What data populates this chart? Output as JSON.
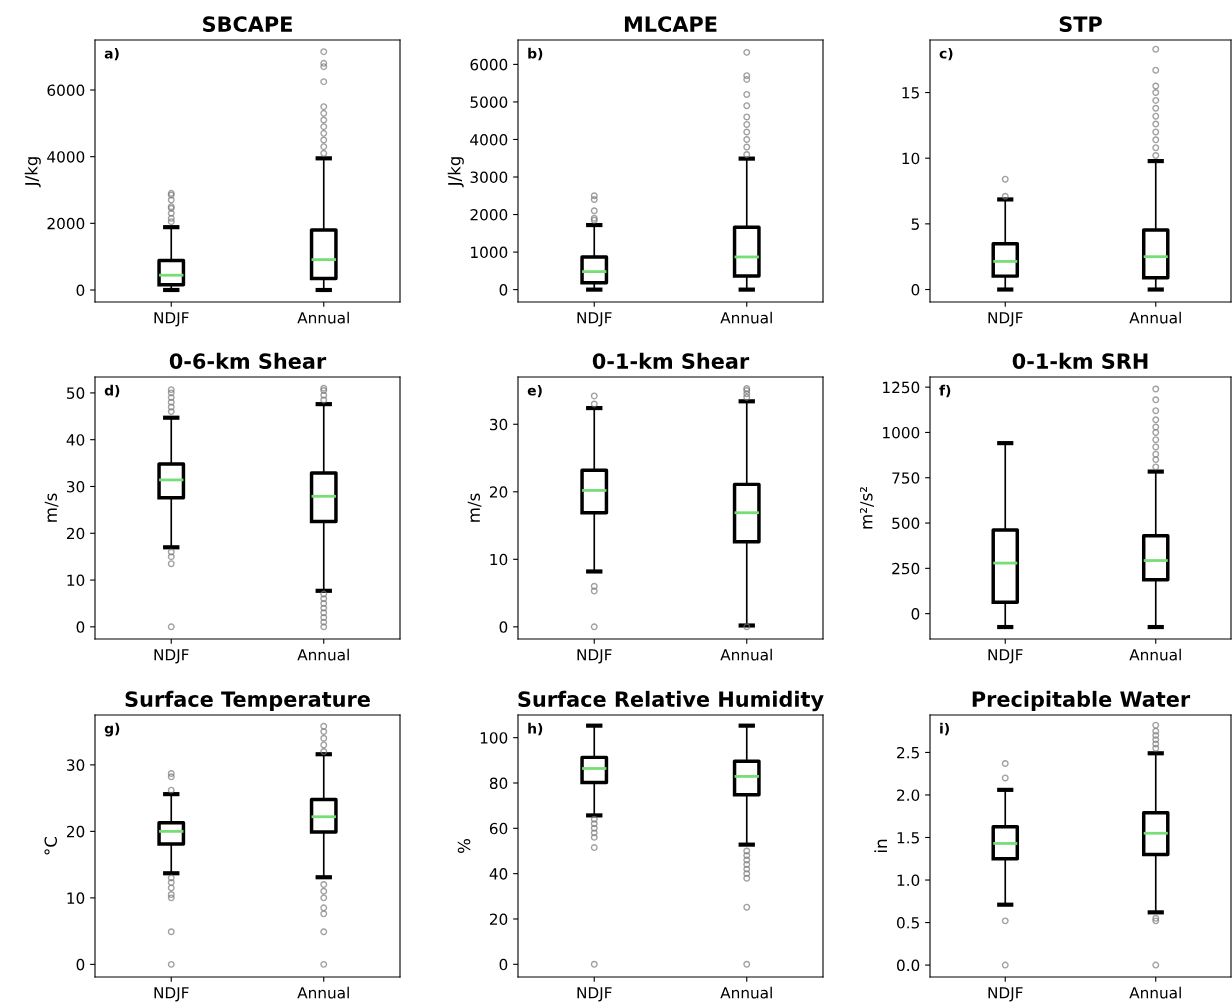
{
  "chart_data": [
    {
      "type": "box",
      "title": "SBCAPE",
      "ylabel": "J/kg",
      "annotations": [
        "a)"
      ],
      "categories": [
        "NDJF",
        "Annual"
      ],
      "color": "#000000",
      "ylim": [
        -360,
        7500
      ],
      "yticks": [
        0,
        2000,
        4000,
        6000
      ],
      "boxes": [
        {
          "low": 0,
          "q1": 156,
          "median": 444,
          "q3": 888,
          "high": 1885,
          "outliers": [
            2050,
            2150,
            2300,
            2450,
            2500,
            2700,
            2850,
            2900
          ]
        },
        {
          "low": 0,
          "q1": 348,
          "median": 912,
          "q3": 1800,
          "high": 3950,
          "outliers": [
            4100,
            4300,
            4500,
            4700,
            4900,
            5100,
            5300,
            5500,
            6250,
            6700,
            6800,
            7150
          ]
        }
      ]
    },
    {
      "type": "box",
      "title": "MLCAPE",
      "ylabel": "J/kg",
      "annotations": [
        "b)"
      ],
      "categories": [
        "NDJF",
        "Annual"
      ],
      "color": "#000000",
      "ylim": [
        -330,
        6650
      ],
      "yticks": [
        0,
        1000,
        2000,
        3000,
        4000,
        5000,
        6000
      ],
      "boxes": [
        {
          "low": 0,
          "q1": 180,
          "median": 480,
          "q3": 870,
          "high": 1720,
          "outliers": [
            1850,
            1900,
            2100,
            2400,
            2500
          ]
        },
        {
          "low": 0,
          "q1": 360,
          "median": 870,
          "q3": 1660,
          "high": 3490,
          "outliers": [
            3600,
            3800,
            4000,
            4200,
            4400,
            4600,
            4900,
            5200,
            5600,
            5700,
            6320
          ]
        }
      ]
    },
    {
      "type": "box",
      "title": "STP",
      "annotations": [
        "c)"
      ],
      "categories": [
        "NDJF",
        "Annual"
      ],
      "color": "#000000",
      "ylim": [
        -0.95,
        19.0
      ],
      "yticks": [
        0,
        5,
        10,
        15
      ],
      "boxes": [
        {
          "low": 0,
          "q1": 1.02,
          "median": 2.14,
          "q3": 3.48,
          "high": 6.86,
          "outliers": [
            7.1,
            8.4
          ]
        },
        {
          "low": 0,
          "q1": 0.9,
          "median": 2.5,
          "q3": 4.53,
          "high": 9.78,
          "outliers": [
            10.2,
            10.8,
            11.4,
            12.0,
            12.6,
            13.2,
            13.8,
            14.4,
            15.0,
            15.5,
            16.7,
            18.3
          ]
        }
      ]
    },
    {
      "type": "box",
      "title": "0-6-km Shear",
      "ylabel": "m/s",
      "annotations": [
        "d)"
      ],
      "categories": [
        "NDJF",
        "Annual"
      ],
      "color": "#000000",
      "ylim": [
        -2.6,
        53.4
      ],
      "yticks": [
        0,
        10,
        20,
        30,
        40,
        50
      ],
      "boxes": [
        {
          "low": 17.0,
          "q1": 27.6,
          "median": 31.4,
          "q3": 34.8,
          "high": 44.7,
          "outliers": [
            0,
            13.5,
            15,
            16,
            46,
            47,
            48,
            49,
            50,
            50.7
          ]
        },
        {
          "low": 7.7,
          "q1": 22.5,
          "median": 27.9,
          "q3": 32.9,
          "high": 47.6,
          "outliers": [
            0,
            1,
            2,
            3,
            4,
            5,
            6,
            7,
            48.5,
            49.5,
            50.5,
            51
          ]
        }
      ]
    },
    {
      "type": "box",
      "title": "0-1-km Shear",
      "ylabel": "m/s",
      "annotations": [
        "e)"
      ],
      "categories": [
        "NDJF",
        "Annual"
      ],
      "color": "#000000",
      "ylim": [
        -1.8,
        37
      ],
      "yticks": [
        0,
        10,
        20,
        30
      ],
      "boxes": [
        {
          "low": 8.2,
          "q1": 16.9,
          "median": 20.2,
          "q3": 23.2,
          "high": 32.4,
          "outliers": [
            0,
            5.3,
            6.0,
            33.0,
            34.2
          ]
        },
        {
          "low": 0.2,
          "q1": 12.6,
          "median": 16.9,
          "q3": 21.1,
          "high": 33.4,
          "outliers": [
            0,
            34,
            34.5,
            35,
            35.3
          ]
        }
      ]
    },
    {
      "type": "box",
      "title": "0-1-km SRH",
      "ylabel": "m²/s²",
      "annotations": [
        "f)"
      ],
      "categories": [
        "NDJF",
        "Annual"
      ],
      "color": "#000000",
      "ylim": [
        -140,
        1306
      ],
      "yticks": [
        0,
        250,
        500,
        750,
        1000,
        1250
      ],
      "boxes": [
        {
          "low": -74,
          "q1": 63,
          "median": 279,
          "q3": 462,
          "high": 941
        },
        {
          "low": -74,
          "q1": 187,
          "median": 293,
          "q3": 430,
          "high": 784,
          "outliers": [
            810,
            850,
            880,
            920,
            960,
            1000,
            1030,
            1070,
            1120,
            1180,
            1240
          ]
        }
      ]
    },
    {
      "type": "box",
      "title": "Surface Temperature",
      "ylabel": "°C",
      "annotations": [
        "g)"
      ],
      "categories": [
        "NDJF",
        "Annual"
      ],
      "color": "#000000",
      "ylim": [
        -1.9,
        37.5
      ],
      "yticks": [
        0,
        10,
        20,
        30
      ],
      "boxes": [
        {
          "low": 13.7,
          "q1": 18.1,
          "median": 20.0,
          "q3": 21.3,
          "high": 25.6,
          "outliers": [
            0,
            4.9,
            10,
            10.5,
            11.5,
            12.3,
            13,
            26.2,
            28.2,
            28.7
          ]
        },
        {
          "low": 13.1,
          "q1": 19.9,
          "median": 22.2,
          "q3": 24.8,
          "high": 31.6,
          "outliers": [
            0,
            4.9,
            7.6,
            8.5,
            10,
            11,
            12,
            32,
            33,
            34,
            35,
            35.8
          ]
        }
      ]
    },
    {
      "type": "box",
      "title": "Surface Relative Humidity",
      "ylabel": "%",
      "annotations": [
        "h)"
      ],
      "categories": [
        "NDJF",
        "Annual"
      ],
      "color": "#000000",
      "ylim": [
        -5.6,
        110
      ],
      "yticks": [
        0,
        20,
        40,
        60,
        80,
        100
      ],
      "boxes": [
        {
          "low": 65.7,
          "q1": 80.2,
          "median": 86.4,
          "q3": 91.3,
          "high": 105.3,
          "outliers": [
            0,
            51.5,
            56,
            58,
            60,
            62,
            64
          ]
        },
        {
          "low": 52.8,
          "q1": 74.8,
          "median": 82.9,
          "q3": 89.6,
          "high": 105.3,
          "outliers": [
            0,
            25.2,
            38,
            40,
            42,
            44,
            46,
            48,
            50
          ]
        }
      ]
    },
    {
      "type": "box",
      "title": "Precipitable Water",
      "ylabel": "in",
      "annotations": [
        "i)"
      ],
      "categories": [
        "NDJF",
        "Annual"
      ],
      "color": "#000000",
      "ylim": [
        -0.14,
        2.94
      ],
      "yticks": [
        {
          "value": 0,
          "label": "0.0"
        },
        {
          "value": 0.5,
          "label": "0.5"
        },
        {
          "value": 1,
          "label": "1.0"
        },
        {
          "value": 1.5,
          "label": "1.5"
        },
        {
          "value": 2,
          "label": "2.0"
        },
        {
          "value": 2.5,
          "label": "2.5"
        }
      ],
      "boxes": [
        {
          "low": 0.71,
          "q1": 1.25,
          "median": 1.43,
          "q3": 1.625,
          "high": 2.06,
          "outliers": [
            0,
            0.52,
            2.2,
            2.37
          ]
        },
        {
          "low": 0.62,
          "q1": 1.3,
          "median": 1.55,
          "q3": 1.79,
          "high": 2.49,
          "outliers": [
            0,
            0.52,
            0.55,
            2.55,
            2.6,
            2.65,
            2.7,
            2.75,
            2.82
          ]
        }
      ]
    }
  ]
}
